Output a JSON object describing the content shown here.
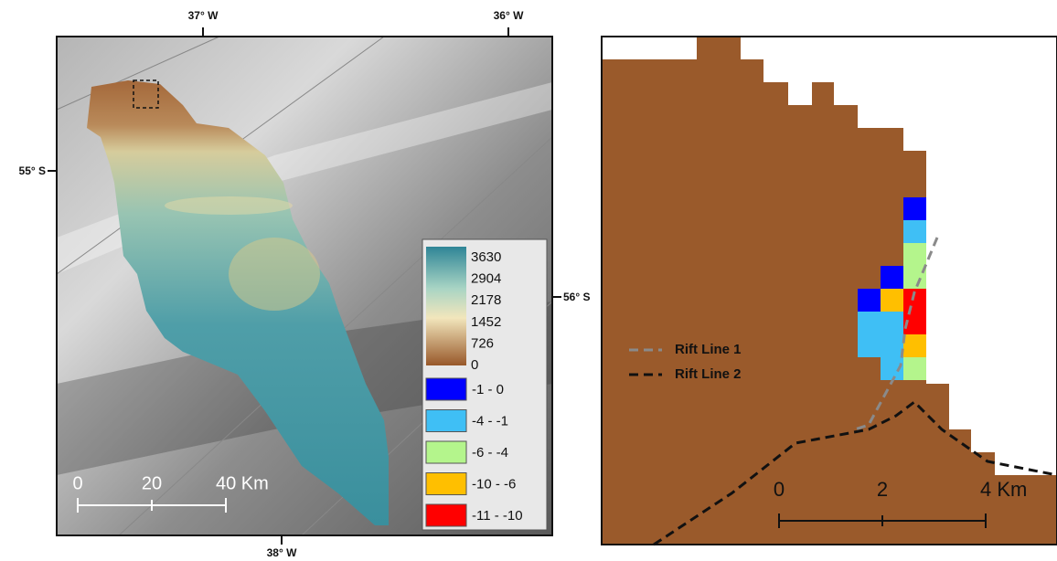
{
  "left_map": {
    "lon_labels_top": [
      "37° W",
      "36° W"
    ],
    "lon_label_bottom": "38° W",
    "lat_labels": [
      "55° S",
      "56° S"
    ],
    "legend": {
      "gradient_labels": [
        3630,
        2904,
        2178,
        1452,
        726,
        0
      ],
      "classes": [
        {
          "label": "-1 - 0",
          "color": "#0000ff"
        },
        {
          "label": "-4 - -1",
          "color": "#3fbff5"
        },
        {
          "label": "-6 - -4",
          "color": "#b4f58c"
        },
        {
          "label": "-10 - -6",
          "color": "#ffbf00"
        },
        {
          "label": "-11 - -10",
          "color": "#ff0000"
        }
      ]
    },
    "scale_bar": [
      "0",
      "20",
      "40 Km"
    ]
  },
  "right_map": {
    "lines": [
      {
        "label": "Rift Line 1",
        "color": "#8a8a8a"
      },
      {
        "label": "Rift Line 2",
        "color": "#111111"
      }
    ],
    "scale_bar": [
      "0",
      "2",
      "4 Km"
    ]
  }
}
